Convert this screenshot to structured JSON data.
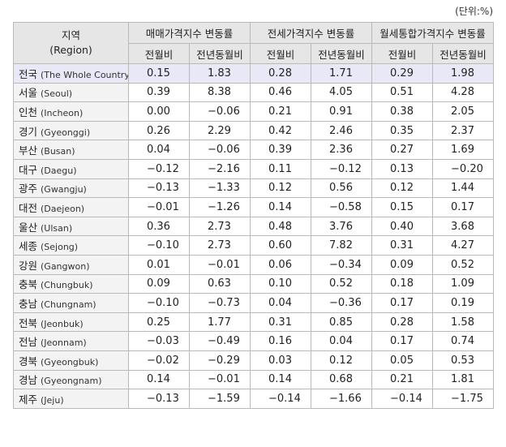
{
  "unit_label": "(단위:%)",
  "header": {
    "region_ko": "지역",
    "region_en": "(Region)",
    "groups": [
      "매매가격지수 변동률",
      "전세가격지수 변동률",
      "월세통합가격지수 변동률"
    ],
    "subcols": [
      "전월비",
      "전년동월비",
      "전월비",
      "전년동월비",
      "전월비",
      "전년동월비"
    ]
  },
  "rows": [
    {
      "ko": "전국",
      "en": "(The Whole Country)",
      "v": [
        "0.15",
        "1.83",
        "0.28",
        "1.71",
        "0.29",
        "1.98"
      ]
    },
    {
      "ko": "서울",
      "en": "(Seoul)",
      "v": [
        "0.39",
        "8.38",
        "0.46",
        "4.05",
        "0.51",
        "4.28"
      ]
    },
    {
      "ko": "인천",
      "en": "(Incheon)",
      "v": [
        "0.00",
        "−0.06",
        "0.21",
        "0.91",
        "0.38",
        "2.05"
      ]
    },
    {
      "ko": "경기",
      "en": "(Gyeonggi)",
      "v": [
        "0.26",
        "2.29",
        "0.42",
        "2.46",
        "0.35",
        "2.37"
      ]
    },
    {
      "ko": "부산",
      "en": "(Busan)",
      "v": [
        "0.04",
        "−0.06",
        "0.39",
        "2.36",
        "0.27",
        "1.69"
      ]
    },
    {
      "ko": "대구",
      "en": "(Daegu)",
      "v": [
        "−0.12",
        "−2.16",
        "0.11",
        "−0.12",
        "0.13",
        "−0.20"
      ]
    },
    {
      "ko": "광주",
      "en": "(Gwangju)",
      "v": [
        "−0.13",
        "−1.33",
        "0.12",
        "0.56",
        "0.12",
        "1.44"
      ]
    },
    {
      "ko": "대전",
      "en": "(Daejeon)",
      "v": [
        "−0.01",
        "−1.26",
        "0.14",
        "−0.58",
        "0.15",
        "0.17"
      ]
    },
    {
      "ko": "울산",
      "en": "(Ulsan)",
      "v": [
        "0.36",
        "2.73",
        "0.48",
        "3.76",
        "0.40",
        "3.68"
      ]
    },
    {
      "ko": "세종",
      "en": "(Sejong)",
      "v": [
        "−0.10",
        "2.73",
        "0.60",
        "7.82",
        "0.31",
        "4.27"
      ]
    },
    {
      "ko": "강원",
      "en": "(Gangwon)",
      "v": [
        "0.01",
        "−0.01",
        "0.06",
        "−0.34",
        "0.09",
        "0.52"
      ]
    },
    {
      "ko": "충북",
      "en": "(Chungbuk)",
      "v": [
        "0.09",
        "0.63",
        "0.10",
        "0.52",
        "0.18",
        "1.09"
      ]
    },
    {
      "ko": "충남",
      "en": "(Chungnam)",
      "v": [
        "−0.10",
        "−0.73",
        "0.04",
        "−0.36",
        "0.17",
        "0.19"
      ]
    },
    {
      "ko": "전북",
      "en": "(Jeonbuk)",
      "v": [
        "0.25",
        "1.77",
        "0.31",
        "0.85",
        "0.28",
        "1.58"
      ]
    },
    {
      "ko": "전남",
      "en": "(Jeonnam)",
      "v": [
        "−0.03",
        "−0.49",
        "0.16",
        "0.04",
        "0.17",
        "0.74"
      ]
    },
    {
      "ko": "경북",
      "en": "(Gyeongbuk)",
      "v": [
        "−0.02",
        "−0.29",
        "0.03",
        "0.12",
        "0.05",
        "0.53"
      ]
    },
    {
      "ko": "경남",
      "en": "(Gyeongnam)",
      "v": [
        "0.14",
        "−0.01",
        "0.14",
        "0.68",
        "0.21",
        "1.81"
      ]
    },
    {
      "ko": "제주",
      "en": "(Jeju)",
      "v": [
        "−0.13",
        "−1.59",
        "−0.14",
        "−1.66",
        "−0.14",
        "−1.75"
      ]
    }
  ]
}
